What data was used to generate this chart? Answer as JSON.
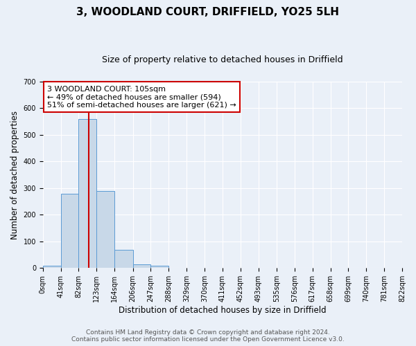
{
  "title": "3, WOODLAND COURT, DRIFFIELD, YO25 5LH",
  "subtitle": "Size of property relative to detached houses in Driffield",
  "xlabel": "Distribution of detached houses by size in Driffield",
  "ylabel": "Number of detached properties",
  "bin_edges": [
    0,
    41,
    82,
    123,
    164,
    206,
    247,
    288,
    329,
    370,
    411,
    452,
    493,
    535,
    576,
    617,
    658,
    699,
    740,
    781,
    822
  ],
  "bar_heights": [
    8,
    280,
    560,
    290,
    68,
    13,
    8,
    0,
    0,
    0,
    0,
    0,
    0,
    0,
    0,
    0,
    0,
    0,
    0,
    0
  ],
  "bar_color": "#c8d8e8",
  "bar_edge_color": "#5b9bd5",
  "vline_x": 105,
  "vline_color": "#cc0000",
  "annotation_text": "3 WOODLAND COURT: 105sqm\n← 49% of detached houses are smaller (594)\n51% of semi-detached houses are larger (621) →",
  "annotation_box_color": "#ffffff",
  "annotation_box_edge_color": "#cc0000",
  "ylim": [
    0,
    700
  ],
  "yticks": [
    0,
    100,
    200,
    300,
    400,
    500,
    600,
    700
  ],
  "tick_labels": [
    "0sqm",
    "41sqm",
    "82sqm",
    "123sqm",
    "164sqm",
    "206sqm",
    "247sqm",
    "288sqm",
    "329sqm",
    "370sqm",
    "411sqm",
    "452sqm",
    "493sqm",
    "535sqm",
    "576sqm",
    "617sqm",
    "658sqm",
    "699sqm",
    "740sqm",
    "781sqm",
    "822sqm"
  ],
  "footer_line1": "Contains HM Land Registry data © Crown copyright and database right 2024.",
  "footer_line2": "Contains public sector information licensed under the Open Government Licence v3.0.",
  "bg_color": "#eaf0f8",
  "plot_bg_color": "#eaf0f8",
  "title_fontsize": 11,
  "subtitle_fontsize": 9,
  "axis_label_fontsize": 8.5,
  "tick_fontsize": 7,
  "annotation_fontsize": 8,
  "footer_fontsize": 6.5
}
